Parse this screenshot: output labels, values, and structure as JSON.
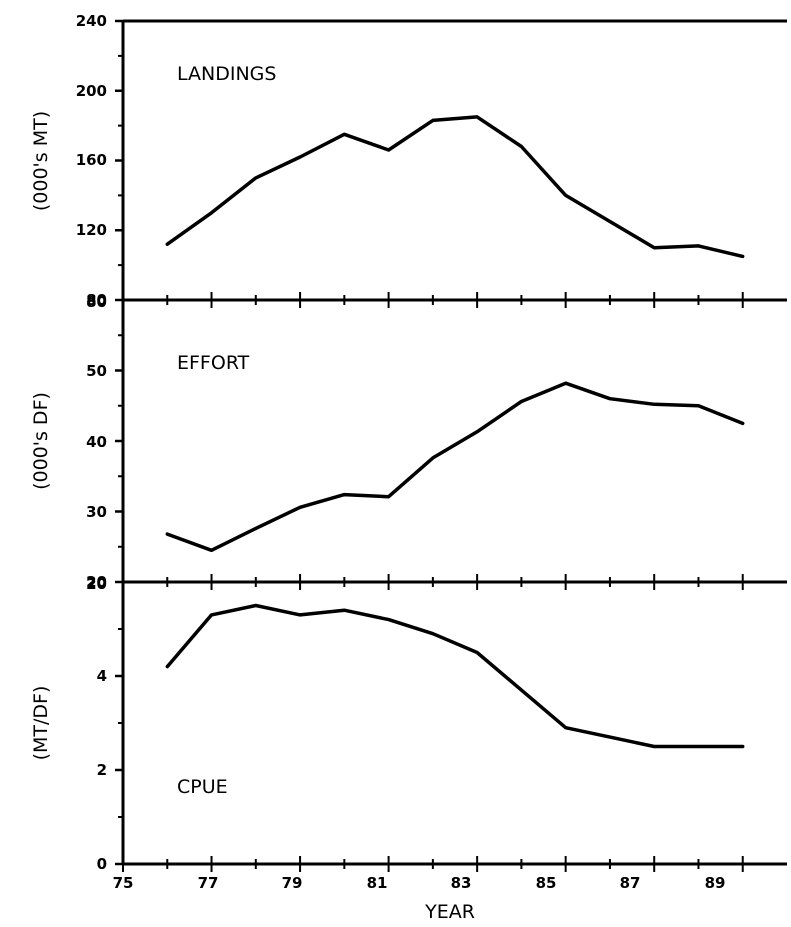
{
  "chart_data": [
    {
      "type": "line",
      "annotation": "LANDINGS",
      "ylabel": "(000's MT)",
      "xlabel": "",
      "ylim": [
        80,
        240
      ],
      "yticks": [
        "80",
        "120",
        "160",
        "200",
        "240"
      ],
      "xlim": [
        75,
        90
      ],
      "series": [
        {
          "x": [
            76,
            77,
            78,
            79,
            80,
            81,
            82,
            83,
            84,
            85,
            86,
            87,
            88,
            89
          ],
          "values": [
            112,
            130,
            150,
            162,
            175,
            166,
            183,
            185,
            168,
            140,
            125,
            110,
            111,
            105
          ]
        }
      ],
      "color": "#000000"
    },
    {
      "type": "line",
      "annotation": "EFFORT",
      "ylabel": "(000's DF)",
      "xlabel": "",
      "ylim": [
        20,
        60
      ],
      "yticks": [
        "20",
        "30",
        "40",
        "50"
      ],
      "xlim": [
        75,
        90
      ],
      "series": [
        {
          "x": [
            76,
            77,
            78,
            79,
            80,
            81,
            82,
            83,
            84,
            85,
            86,
            87,
            88,
            89
          ],
          "values": [
            26.8,
            24.5,
            27.6,
            30.6,
            32.4,
            32.1,
            37.6,
            41.3,
            45.6,
            48.2,
            46.0,
            45.2,
            45.0,
            42.5
          ]
        }
      ],
      "color": "#000000"
    },
    {
      "type": "line",
      "annotation": "CPUE",
      "ylabel": "(MT/DF)",
      "xlabel": "YEAR",
      "ylim": [
        0,
        6
      ],
      "yticks": [
        "0",
        "2",
        "4"
      ],
      "xlim": [
        75,
        90
      ],
      "xticks": [
        "75",
        "77",
        "79",
        "81",
        "83",
        "85",
        "87",
        "89"
      ],
      "series": [
        {
          "x": [
            76,
            77,
            78,
            79,
            80,
            81,
            82,
            83,
            84,
            85,
            86,
            87,
            88,
            89
          ],
          "values": [
            4.2,
            5.3,
            5.5,
            5.3,
            5.4,
            5.2,
            4.9,
            4.5,
            3.7,
            2.9,
            2.7,
            2.5,
            2.5,
            2.5
          ]
        }
      ],
      "color": "#000000"
    }
  ]
}
